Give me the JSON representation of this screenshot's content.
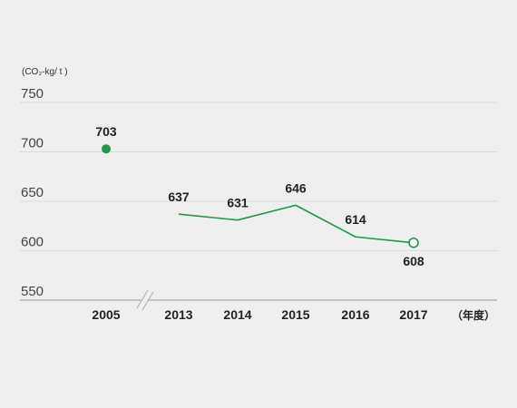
{
  "chart_data": {
    "type": "line",
    "y_unit": "(CO₂-kg/ t )",
    "x_unit": "（年度）",
    "ylim": [
      550,
      750
    ],
    "yticks": [
      550,
      600,
      650,
      700,
      750
    ],
    "grid": true,
    "colors": {
      "line": "#1a9a4a",
      "point": "#1a9a4a"
    },
    "axis_break_between": [
      "2005",
      "2013"
    ],
    "categories": [
      "2005",
      "2013",
      "2014",
      "2015",
      "2016",
      "2017"
    ],
    "values": [
      703,
      637,
      631,
      646,
      614,
      608
    ],
    "labels": [
      "703",
      "637",
      "631",
      "646",
      "614",
      "608"
    ],
    "connected": [
      false,
      true,
      true,
      true,
      true,
      true
    ],
    "markers": [
      "filled-circle",
      "none",
      "none",
      "none",
      "none",
      "open-circle"
    ]
  }
}
